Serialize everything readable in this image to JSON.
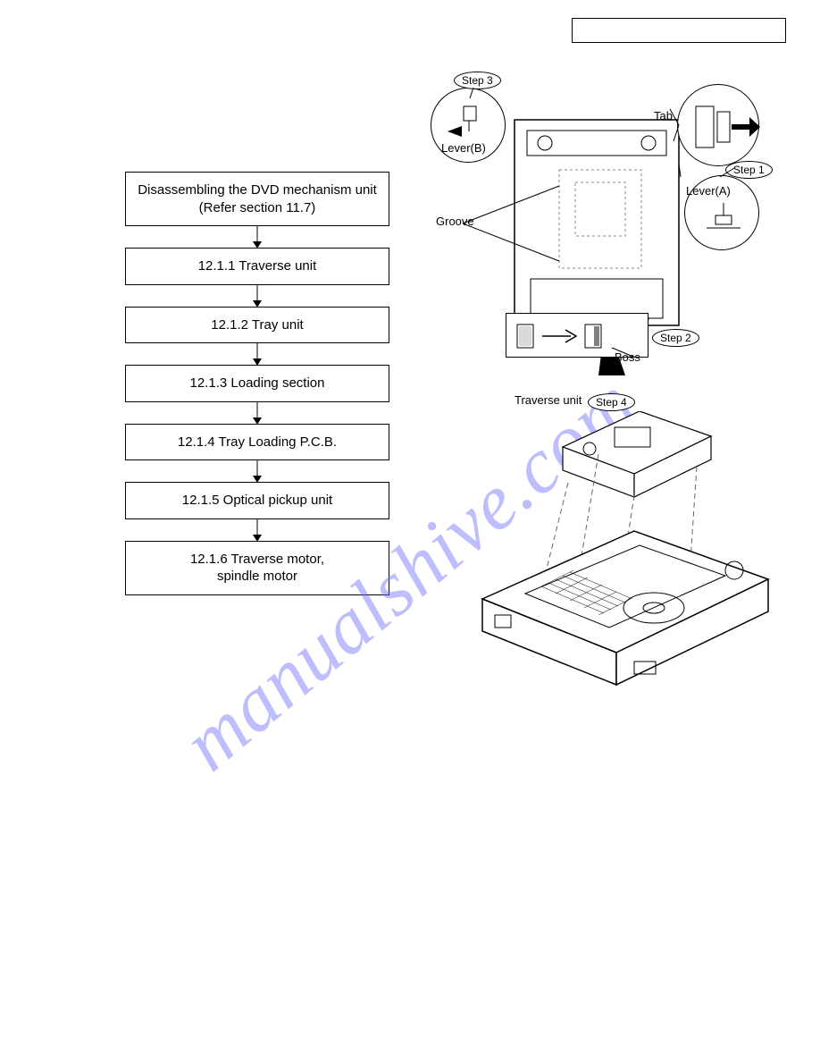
{
  "flowchart": {
    "boxes": [
      {
        "text": "Disassembling the DVD mechanism unit\n(Refer section 11.7)",
        "tall": true
      },
      {
        "text": "12.1.1 Traverse unit"
      },
      {
        "text": "12.1.2 Tray unit"
      },
      {
        "text": "12.1.3 Loading section"
      },
      {
        "text": "12.1.4 Tray Loading P.C.B."
      },
      {
        "text": "12.1.5 Optical pickup unit"
      },
      {
        "text": "12.1.6 Traverse motor,\nspindle motor",
        "tall": true
      }
    ]
  },
  "diagram": {
    "steps": {
      "step1": "Step 1",
      "step2": "Step 2",
      "step3": "Step 3",
      "step4": "Step 4"
    },
    "labels": {
      "tab": "Tab",
      "leverA": "Lever(A)",
      "leverB": "Lever(B)",
      "groove": "Groove",
      "boss": "Boss",
      "traverse": "Traverse unit"
    }
  },
  "watermark": "manualshive.com",
  "colors": {
    "line": "#000000",
    "bg": "#ffffff",
    "watermark": "rgba(110,110,255,0.45)",
    "dashed": "#888888"
  }
}
